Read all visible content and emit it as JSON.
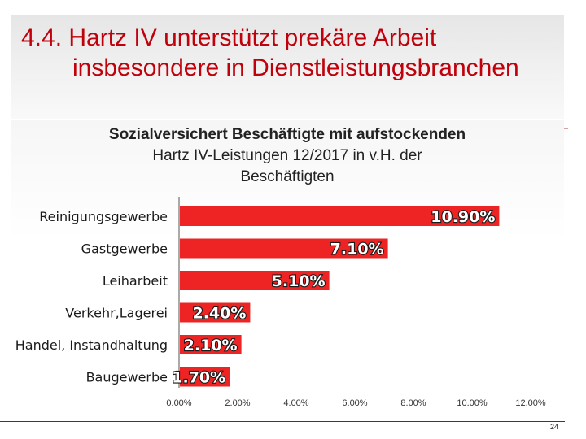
{
  "slide": {
    "title_line1": "4.4. Hartz IV unterstützt prekäre Arbeit",
    "title_line2": "insbesondere in Dienstleistungsbranchen",
    "page_number": "24"
  },
  "colors": {
    "title": "#c0000a",
    "bar": "#ee2424",
    "label": "#ffffff",
    "label_outline": "#1a1a1a",
    "axis": "#555555"
  },
  "chart_data": {
    "type": "bar",
    "orientation": "horizontal",
    "title_line1": "Sozialversichert Beschäftigte mit aufstockenden",
    "title_line2": "Hartz IV-Leistungen 12/2017 in v.H. der",
    "title_line3": "Beschäftigten",
    "categories": [
      "Reinigungsgewerbe",
      "Gastgewerbe",
      "Leiharbeit",
      "Verkehr,Lagerei",
      "Handel, Instandhaltung",
      "Baugewerbe"
    ],
    "values": [
      10.9,
      7.1,
      5.1,
      2.4,
      2.1,
      1.7
    ],
    "data_labels": [
      "10.90%",
      "7.10%",
      "5.10%",
      "2.40%",
      "2.10%",
      "1.70%"
    ],
    "x_ticks": [
      "0.00%",
      "2.00%",
      "4.00%",
      "6.00%",
      "8.00%",
      "10.00%",
      "12.00%"
    ],
    "xlim": [
      0,
      12
    ],
    "xlabel": "",
    "ylabel": "",
    "grid": false
  }
}
